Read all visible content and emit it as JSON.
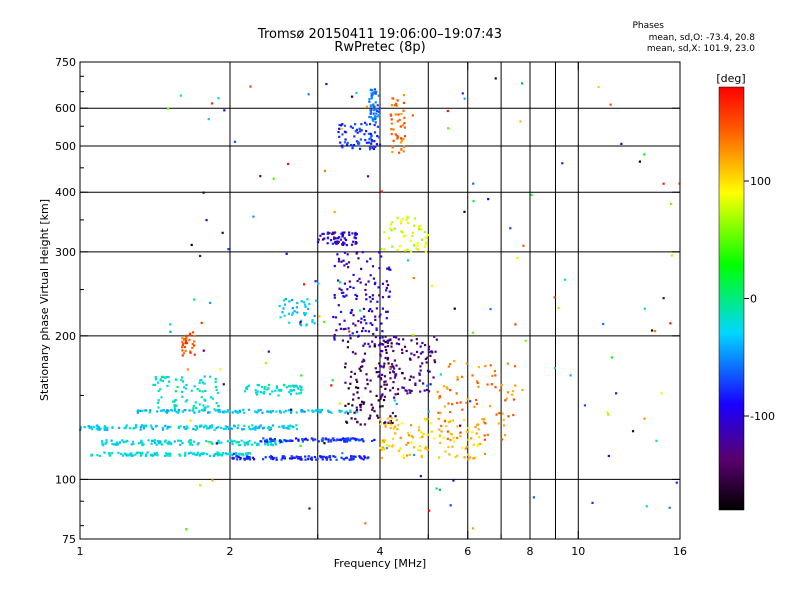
{
  "header": {
    "title_line1": "Tromsø 20150411 19:06:00–19:07:43",
    "title_line2": "RwPretec (8p)",
    "stats_title": "Phases",
    "stats_line1": "mean, sd,O: -73.4, 20.8",
    "stats_line2": "mean, sd,X: 101.9, 23.0"
  },
  "colorbar": {
    "unit_label": "[deg]",
    "tick_labels": [
      "100",
      "0",
      "-100"
    ],
    "tick_values": [
      100,
      0,
      -100
    ],
    "range": [
      -180,
      180
    ]
  },
  "chart_data": {
    "type": "scatter",
    "xlabel": "Frequency [MHz]",
    "ylabel": "Stationary phase Virtual Height [km]",
    "xscale": "log",
    "yscale": "log",
    "xlim": [
      1,
      16
    ],
    "ylim": [
      75,
      750
    ],
    "x_ticks": [
      1,
      2,
      4,
      6,
      8,
      10,
      16
    ],
    "x_tick_labels": [
      "1",
      "2",
      "4",
      "6",
      "8",
      "10",
      "16"
    ],
    "x_minor_ticks": [
      3,
      5,
      7,
      9
    ],
    "y_ticks": [
      75,
      100,
      200,
      300,
      400,
      500,
      600,
      750
    ],
    "y_tick_labels": [
      "75",
      "100",
      "200",
      "300",
      "400",
      "500",
      "600",
      "750"
    ],
    "grid": true,
    "colormap": "rainbow phase (black-purple-blue-cyan-green-yellow-red)",
    "clusters": [
      {
        "f0": 1.05,
        "f1": 2.2,
        "h0": 112,
        "h1": 114,
        "phase": -25,
        "n": 120
      },
      {
        "f0": 1.1,
        "f1": 2.6,
        "h0": 118,
        "h1": 121,
        "phase": -25,
        "n": 130
      },
      {
        "f0": 1.0,
        "f1": 2.8,
        "h0": 127,
        "h1": 130,
        "phase": -30,
        "n": 140
      },
      {
        "f0": 1.3,
        "f1": 3.6,
        "h0": 138,
        "h1": 140,
        "phase": -35,
        "n": 130
      },
      {
        "f0": 2.0,
        "f1": 3.8,
        "h0": 110,
        "h1": 112,
        "phase": -95,
        "n": 110
      },
      {
        "f0": 2.3,
        "f1": 3.9,
        "h0": 120,
        "h1": 122,
        "phase": -90,
        "n": 90
      },
      {
        "f0": 1.4,
        "f1": 1.9,
        "h0": 140,
        "h1": 165,
        "phase": -20,
        "n": 80
      },
      {
        "f0": 2.1,
        "f1": 2.8,
        "h0": 150,
        "h1": 158,
        "phase": -20,
        "n": 60
      },
      {
        "f0": 2.5,
        "f1": 3.0,
        "h0": 210,
        "h1": 240,
        "phase": -35,
        "n": 40
      },
      {
        "f0": 3.0,
        "f1": 3.6,
        "h0": 310,
        "h1": 330,
        "phase": -115,
        "n": 60
      },
      {
        "f0": 3.3,
        "f1": 4.0,
        "h0": 490,
        "h1": 560,
        "phase": -90,
        "n": 70
      },
      {
        "f0": 3.8,
        "f1": 4.0,
        "h0": 560,
        "h1": 660,
        "phase": -70,
        "n": 50
      },
      {
        "f0": 4.2,
        "f1": 4.5,
        "h0": 480,
        "h1": 640,
        "phase": 135,
        "n": 45
      },
      {
        "f0": 3.2,
        "f1": 4.2,
        "h0": 190,
        "h1": 300,
        "phase": -120,
        "n": 140
      },
      {
        "f0": 3.4,
        "f1": 4.3,
        "h0": 130,
        "h1": 200,
        "phase": -150,
        "n": 120
      },
      {
        "f0": 4.0,
        "f1": 5.2,
        "h0": 150,
        "h1": 200,
        "phase": -135,
        "n": 110
      },
      {
        "f0": 4.0,
        "f1": 5.0,
        "h0": 300,
        "h1": 360,
        "phase": 80,
        "n": 50
      },
      {
        "f0": 4.0,
        "f1": 6.5,
        "h0": 110,
        "h1": 135,
        "phase": 105,
        "n": 120
      },
      {
        "f0": 5.2,
        "f1": 7.5,
        "h0": 120,
        "h1": 180,
        "phase": 130,
        "n": 80
      },
      {
        "f0": 1.6,
        "f1": 1.7,
        "h0": 180,
        "h1": 205,
        "phase": 145,
        "n": 30
      },
      {
        "f0": 1.5,
        "f1": 16,
        "h0": 78,
        "h1": 700,
        "phase": 0,
        "n": 150
      }
    ]
  }
}
